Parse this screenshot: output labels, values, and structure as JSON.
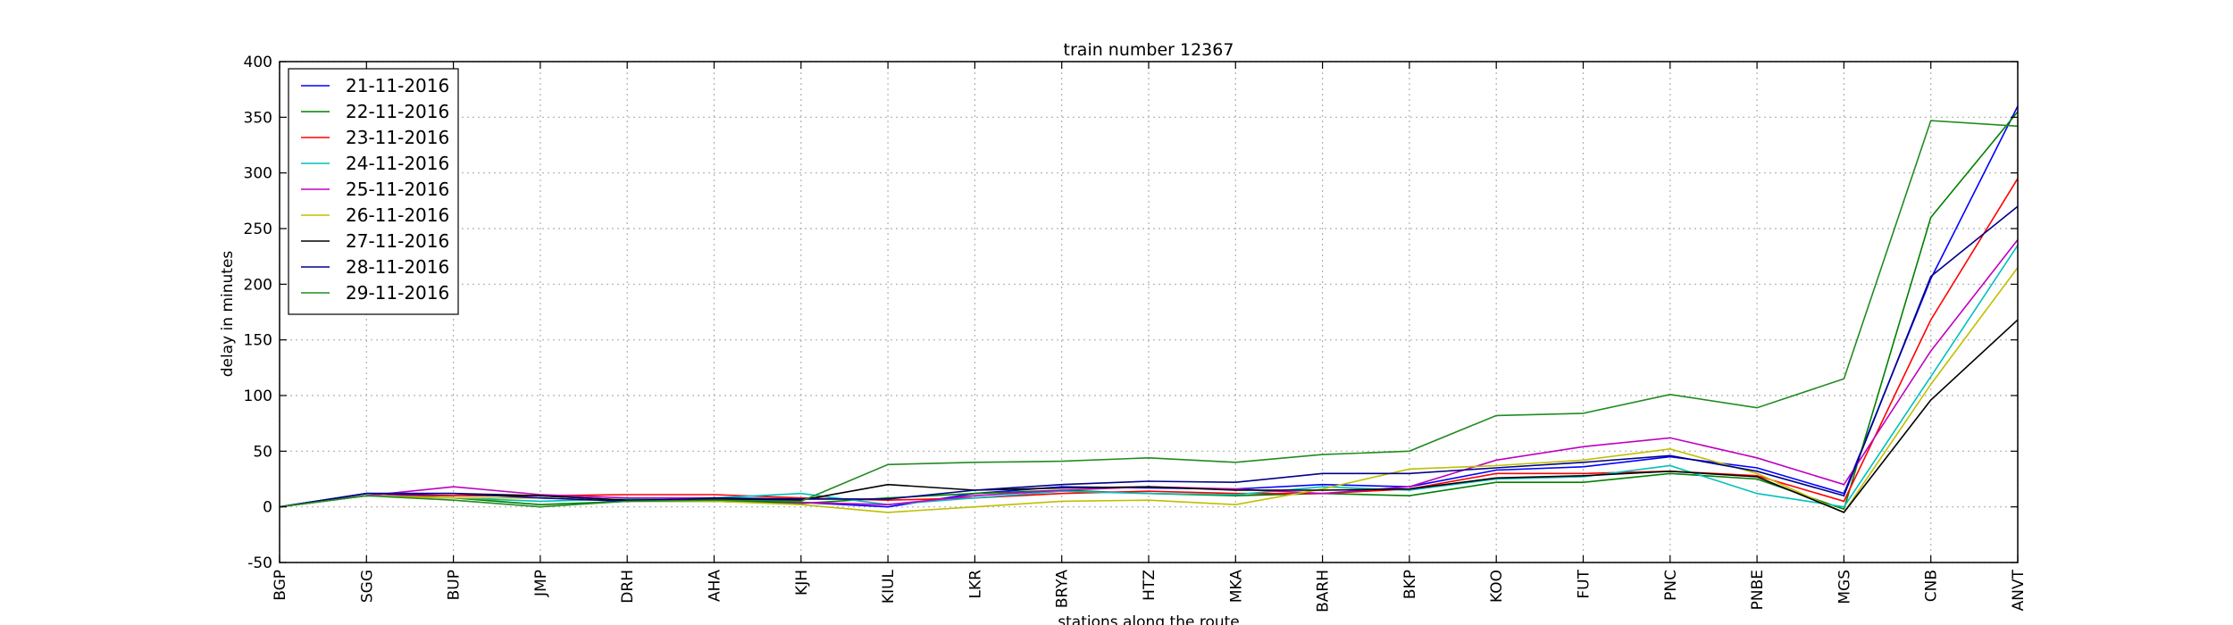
{
  "chart_data": {
    "type": "line",
    "title": "train number 12367",
    "xlabel": "stations along the route",
    "ylabel": "delay in minutes",
    "ylim": [
      -50,
      400
    ],
    "yticks": [
      -50,
      0,
      50,
      100,
      150,
      200,
      250,
      300,
      350,
      400
    ],
    "grid": true,
    "legend_position": "top-left",
    "categories": [
      "BGP",
      "SGG",
      "BUP",
      "JMP",
      "DRH",
      "AHA",
      "KJH",
      "KIUL",
      "LKR",
      "BRYA",
      "HTZ",
      "MKA",
      "BARH",
      "BKP",
      "KOO",
      "FUT",
      "PNC",
      "PNBE",
      "MGS",
      "CNB",
      "ANVT"
    ],
    "series": [
      {
        "name": "21-11-2016",
        "color": "#0000ff",
        "values": [
          0,
          12,
          10,
          10,
          6,
          6,
          4,
          0,
          12,
          18,
          17,
          16,
          20,
          18,
          33,
          36,
          45,
          35,
          12,
          205,
          360
        ]
      },
      {
        "name": "22-11-2016",
        "color": "#008000",
        "values": [
          0,
          10,
          8,
          2,
          5,
          5,
          3,
          8,
          12,
          15,
          12,
          10,
          12,
          10,
          22,
          22,
          30,
          25,
          -2,
          260,
          355
        ]
      },
      {
        "name": "23-11-2016",
        "color": "#ff0000",
        "values": [
          0,
          10,
          10,
          10,
          11,
          11,
          8,
          6,
          8,
          12,
          14,
          12,
          12,
          16,
          30,
          30,
          32,
          28,
          5,
          168,
          295
        ]
      },
      {
        "name": "24-11-2016",
        "color": "#00bfbf",
        "values": [
          0,
          10,
          8,
          5,
          7,
          8,
          12,
          2,
          8,
          14,
          12,
          11,
          18,
          15,
          25,
          27,
          37,
          12,
          0,
          117,
          235
        ]
      },
      {
        "name": "25-11-2016",
        "color": "#bf00bf",
        "values": [
          0,
          10,
          18,
          11,
          8,
          8,
          4,
          2,
          10,
          15,
          18,
          16,
          12,
          18,
          42,
          54,
          62,
          44,
          20,
          140,
          240
        ]
      },
      {
        "name": "26-11-2016",
        "color": "#bfbf00",
        "values": [
          0,
          10,
          8,
          8,
          5,
          5,
          2,
          -5,
          0,
          5,
          6,
          2,
          16,
          34,
          37,
          42,
          52,
          30,
          -5,
          110,
          215
        ]
      },
      {
        "name": "27-11-2016",
        "color": "#000000",
        "values": [
          0,
          12,
          12,
          10,
          6,
          7,
          6,
          20,
          15,
          17,
          18,
          15,
          15,
          16,
          26,
          28,
          32,
          27,
          -5,
          96,
          168
        ]
      },
      {
        "name": "28-11-2016",
        "color": "#00008b",
        "values": [
          0,
          12,
          12,
          8,
          5,
          8,
          7,
          7,
          15,
          20,
          23,
          22,
          30,
          30,
          35,
          40,
          46,
          32,
          10,
          207,
          270
        ]
      },
      {
        "name": "29-11-2016",
        "color": "#228b22",
        "values": [
          0,
          10,
          6,
          0,
          5,
          6,
          5,
          38,
          40,
          41,
          44,
          40,
          47,
          50,
          82,
          84,
          101,
          89,
          115,
          347,
          342
        ]
      }
    ]
  }
}
